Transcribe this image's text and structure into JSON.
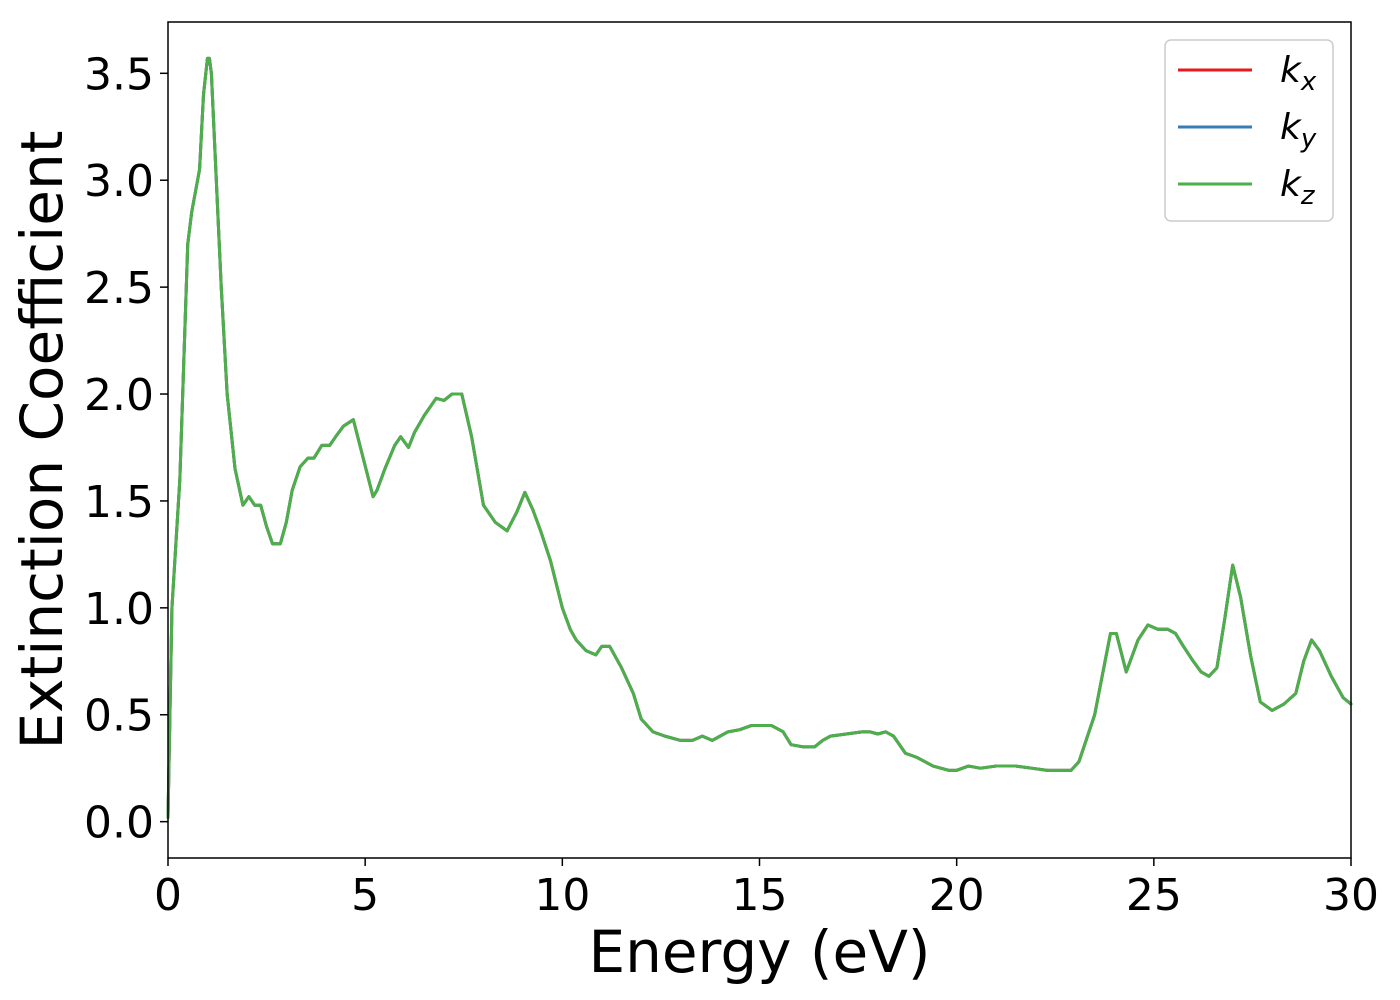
{
  "chart_data": {
    "type": "line",
    "title": "",
    "xlabel": "Energy (eV)",
    "ylabel": "Extinction Coefficient",
    "xlim": [
      0,
      30
    ],
    "ylim": [
      -0.17,
      3.74
    ],
    "xticks": [
      0,
      5,
      10,
      15,
      20,
      25,
      30
    ],
    "xtick_labels": [
      "0",
      "5",
      "10",
      "15",
      "20",
      "25",
      "30"
    ],
    "yticks": [
      0.0,
      0.5,
      1.0,
      1.5,
      2.0,
      2.5,
      3.0,
      3.5
    ],
    "ytick_labels": [
      "0.0",
      "0.5",
      "1.0",
      "1.5",
      "2.0",
      "2.5",
      "3.0",
      "3.5"
    ],
    "grid": false,
    "legend_position": "top-right",
    "series": [
      {
        "name": "k",
        "subscript": "x",
        "color": "#e41a1c",
        "x": [
          0,
          0.1,
          0.3,
          0.5,
          0.6,
          0.8,
          0.9,
          1.0,
          1.05,
          1.1,
          1.2,
          1.35,
          1.5,
          1.7,
          1.9,
          2.05,
          2.2,
          2.35,
          2.5,
          2.65,
          2.85,
          3.0,
          3.15,
          3.35,
          3.55,
          3.7,
          3.9,
          4.1,
          4.25,
          4.45,
          4.7,
          4.95,
          5.2,
          5.3,
          5.5,
          5.75,
          5.9,
          6.1,
          6.25,
          6.5,
          6.8,
          7.0,
          7.2,
          7.45,
          7.7,
          8.0,
          8.3,
          8.6,
          8.85,
          9.05,
          9.25,
          9.45,
          9.7,
          10.0,
          10.2,
          10.35,
          10.6,
          10.85,
          11.0,
          11.2,
          11.5,
          11.8,
          12.0,
          12.3,
          12.6,
          13.0,
          13.3,
          13.55,
          13.8,
          14.0,
          14.2,
          14.5,
          14.8,
          15.0,
          15.3,
          15.6,
          15.8,
          16.1,
          16.4,
          16.6,
          16.8,
          17.2,
          17.6,
          17.8,
          18.0,
          18.2,
          18.4,
          18.7,
          19.0,
          19.4,
          19.8,
          20.0,
          20.3,
          20.6,
          21.0,
          21.2,
          21.5,
          21.9,
          22.3,
          22.6,
          22.9,
          23.1,
          23.5,
          23.9,
          24.05,
          24.3,
          24.6,
          24.85,
          25.1,
          25.35,
          25.55,
          25.75,
          26.0,
          26.2,
          26.4,
          26.6,
          26.8,
          27.0,
          27.2,
          27.45,
          27.7,
          28.0,
          28.3,
          28.6,
          28.8,
          29.0,
          29.2,
          29.5,
          29.8,
          30.0
        ],
        "values": [
          0.02,
          1.0,
          1.6,
          2.7,
          2.85,
          3.05,
          3.4,
          3.57,
          3.57,
          3.5,
          3.1,
          2.5,
          2.0,
          1.65,
          1.48,
          1.52,
          1.48,
          1.48,
          1.38,
          1.3,
          1.3,
          1.4,
          1.55,
          1.66,
          1.7,
          1.7,
          1.76,
          1.76,
          1.8,
          1.85,
          1.88,
          1.7,
          1.52,
          1.55,
          1.65,
          1.76,
          1.8,
          1.75,
          1.82,
          1.9,
          1.98,
          1.97,
          2.0,
          2.0,
          1.8,
          1.48,
          1.4,
          1.36,
          1.45,
          1.54,
          1.46,
          1.36,
          1.22,
          1.0,
          0.9,
          0.85,
          0.8,
          0.78,
          0.82,
          0.82,
          0.72,
          0.6,
          0.48,
          0.42,
          0.4,
          0.38,
          0.38,
          0.4,
          0.38,
          0.4,
          0.42,
          0.43,
          0.45,
          0.45,
          0.45,
          0.42,
          0.36,
          0.35,
          0.35,
          0.38,
          0.4,
          0.41,
          0.42,
          0.42,
          0.41,
          0.42,
          0.4,
          0.32,
          0.3,
          0.26,
          0.24,
          0.24,
          0.26,
          0.25,
          0.26,
          0.26,
          0.26,
          0.25,
          0.24,
          0.24,
          0.24,
          0.28,
          0.5,
          0.88,
          0.88,
          0.7,
          0.85,
          0.92,
          0.9,
          0.9,
          0.88,
          0.82,
          0.75,
          0.7,
          0.68,
          0.72,
          0.95,
          1.2,
          1.05,
          0.78,
          0.56,
          0.52,
          0.55,
          0.6,
          0.75,
          0.85,
          0.8,
          0.68,
          0.58,
          0.55
        ]
      },
      {
        "name": "k",
        "subscript": "y",
        "color": "#377eb8",
        "x": [
          0,
          0.1,
          0.3,
          0.5,
          0.6,
          0.8,
          0.9,
          1.0,
          1.05,
          1.1,
          1.2,
          1.35,
          1.5,
          1.7,
          1.9,
          2.05,
          2.2,
          2.35,
          2.5,
          2.65,
          2.85,
          3.0,
          3.15,
          3.35,
          3.55,
          3.7,
          3.9,
          4.1,
          4.25,
          4.45,
          4.7,
          4.95,
          5.2,
          5.3,
          5.5,
          5.75,
          5.9,
          6.1,
          6.25,
          6.5,
          6.8,
          7.0,
          7.2,
          7.45,
          7.7,
          8.0,
          8.3,
          8.6,
          8.85,
          9.05,
          9.25,
          9.45,
          9.7,
          10.0,
          10.2,
          10.35,
          10.6,
          10.85,
          11.0,
          11.2,
          11.5,
          11.8,
          12.0,
          12.3,
          12.6,
          13.0,
          13.3,
          13.55,
          13.8,
          14.0,
          14.2,
          14.5,
          14.8,
          15.0,
          15.3,
          15.6,
          15.8,
          16.1,
          16.4,
          16.6,
          16.8,
          17.2,
          17.6,
          17.8,
          18.0,
          18.2,
          18.4,
          18.7,
          19.0,
          19.4,
          19.8,
          20.0,
          20.3,
          20.6,
          21.0,
          21.2,
          21.5,
          21.9,
          22.3,
          22.6,
          22.9,
          23.1,
          23.5,
          23.9,
          24.05,
          24.3,
          24.6,
          24.85,
          25.1,
          25.35,
          25.55,
          25.75,
          26.0,
          26.2,
          26.4,
          26.6,
          26.8,
          27.0,
          27.2,
          27.45,
          27.7,
          28.0,
          28.3,
          28.6,
          28.8,
          29.0,
          29.2,
          29.5,
          29.8,
          30.0
        ],
        "values": [
          0.02,
          1.0,
          1.6,
          2.7,
          2.85,
          3.05,
          3.4,
          3.57,
          3.57,
          3.5,
          3.1,
          2.5,
          2.0,
          1.65,
          1.48,
          1.52,
          1.48,
          1.48,
          1.38,
          1.3,
          1.3,
          1.4,
          1.55,
          1.66,
          1.7,
          1.7,
          1.76,
          1.76,
          1.8,
          1.85,
          1.88,
          1.7,
          1.52,
          1.55,
          1.65,
          1.76,
          1.8,
          1.75,
          1.82,
          1.9,
          1.98,
          1.97,
          2.0,
          2.0,
          1.8,
          1.48,
          1.4,
          1.36,
          1.45,
          1.54,
          1.46,
          1.36,
          1.22,
          1.0,
          0.9,
          0.85,
          0.8,
          0.78,
          0.82,
          0.82,
          0.72,
          0.6,
          0.48,
          0.42,
          0.4,
          0.38,
          0.38,
          0.4,
          0.38,
          0.4,
          0.42,
          0.43,
          0.45,
          0.45,
          0.45,
          0.42,
          0.36,
          0.35,
          0.35,
          0.38,
          0.4,
          0.41,
          0.42,
          0.42,
          0.41,
          0.42,
          0.4,
          0.32,
          0.3,
          0.26,
          0.24,
          0.24,
          0.26,
          0.25,
          0.26,
          0.26,
          0.26,
          0.25,
          0.24,
          0.24,
          0.24,
          0.28,
          0.5,
          0.88,
          0.88,
          0.7,
          0.85,
          0.92,
          0.9,
          0.9,
          0.88,
          0.82,
          0.75,
          0.7,
          0.68,
          0.72,
          0.95,
          1.2,
          1.05,
          0.78,
          0.56,
          0.52,
          0.55,
          0.6,
          0.75,
          0.85,
          0.8,
          0.68,
          0.58,
          0.55
        ]
      },
      {
        "name": "k",
        "subscript": "z",
        "color": "#4daf4a",
        "x": [
          0,
          0.1,
          0.3,
          0.5,
          0.6,
          0.8,
          0.9,
          1.0,
          1.05,
          1.1,
          1.2,
          1.35,
          1.5,
          1.7,
          1.9,
          2.05,
          2.2,
          2.35,
          2.5,
          2.65,
          2.85,
          3.0,
          3.15,
          3.35,
          3.55,
          3.7,
          3.9,
          4.1,
          4.25,
          4.45,
          4.7,
          4.95,
          5.2,
          5.3,
          5.5,
          5.75,
          5.9,
          6.1,
          6.25,
          6.5,
          6.8,
          7.0,
          7.2,
          7.45,
          7.7,
          8.0,
          8.3,
          8.6,
          8.85,
          9.05,
          9.25,
          9.45,
          9.7,
          10.0,
          10.2,
          10.35,
          10.6,
          10.85,
          11.0,
          11.2,
          11.5,
          11.8,
          12.0,
          12.3,
          12.6,
          13.0,
          13.3,
          13.55,
          13.8,
          14.0,
          14.2,
          14.5,
          14.8,
          15.0,
          15.3,
          15.6,
          15.8,
          16.1,
          16.4,
          16.6,
          16.8,
          17.2,
          17.6,
          17.8,
          18.0,
          18.2,
          18.4,
          18.7,
          19.0,
          19.4,
          19.8,
          20.0,
          20.3,
          20.6,
          21.0,
          21.2,
          21.5,
          21.9,
          22.3,
          22.6,
          22.9,
          23.1,
          23.5,
          23.9,
          24.05,
          24.3,
          24.6,
          24.85,
          25.1,
          25.35,
          25.55,
          25.75,
          26.0,
          26.2,
          26.4,
          26.6,
          26.8,
          27.0,
          27.2,
          27.45,
          27.7,
          28.0,
          28.3,
          28.6,
          28.8,
          29.0,
          29.2,
          29.5,
          29.8,
          30.0
        ],
        "values": [
          0.02,
          1.0,
          1.6,
          2.7,
          2.85,
          3.05,
          3.4,
          3.57,
          3.57,
          3.5,
          3.1,
          2.5,
          2.0,
          1.65,
          1.48,
          1.52,
          1.48,
          1.48,
          1.38,
          1.3,
          1.3,
          1.4,
          1.55,
          1.66,
          1.7,
          1.7,
          1.76,
          1.76,
          1.8,
          1.85,
          1.88,
          1.7,
          1.52,
          1.55,
          1.65,
          1.76,
          1.8,
          1.75,
          1.82,
          1.9,
          1.98,
          1.97,
          2.0,
          2.0,
          1.8,
          1.48,
          1.4,
          1.36,
          1.45,
          1.54,
          1.46,
          1.36,
          1.22,
          1.0,
          0.9,
          0.85,
          0.8,
          0.78,
          0.82,
          0.82,
          0.72,
          0.6,
          0.48,
          0.42,
          0.4,
          0.38,
          0.38,
          0.4,
          0.38,
          0.4,
          0.42,
          0.43,
          0.45,
          0.45,
          0.45,
          0.42,
          0.36,
          0.35,
          0.35,
          0.38,
          0.4,
          0.41,
          0.42,
          0.42,
          0.41,
          0.42,
          0.4,
          0.32,
          0.3,
          0.26,
          0.24,
          0.24,
          0.26,
          0.25,
          0.26,
          0.26,
          0.26,
          0.25,
          0.24,
          0.24,
          0.24,
          0.28,
          0.5,
          0.88,
          0.88,
          0.7,
          0.85,
          0.92,
          0.9,
          0.9,
          0.88,
          0.82,
          0.75,
          0.7,
          0.68,
          0.72,
          0.95,
          1.2,
          1.05,
          0.78,
          0.56,
          0.52,
          0.55,
          0.6,
          0.75,
          0.85,
          0.8,
          0.68,
          0.58,
          0.55
        ]
      }
    ]
  }
}
